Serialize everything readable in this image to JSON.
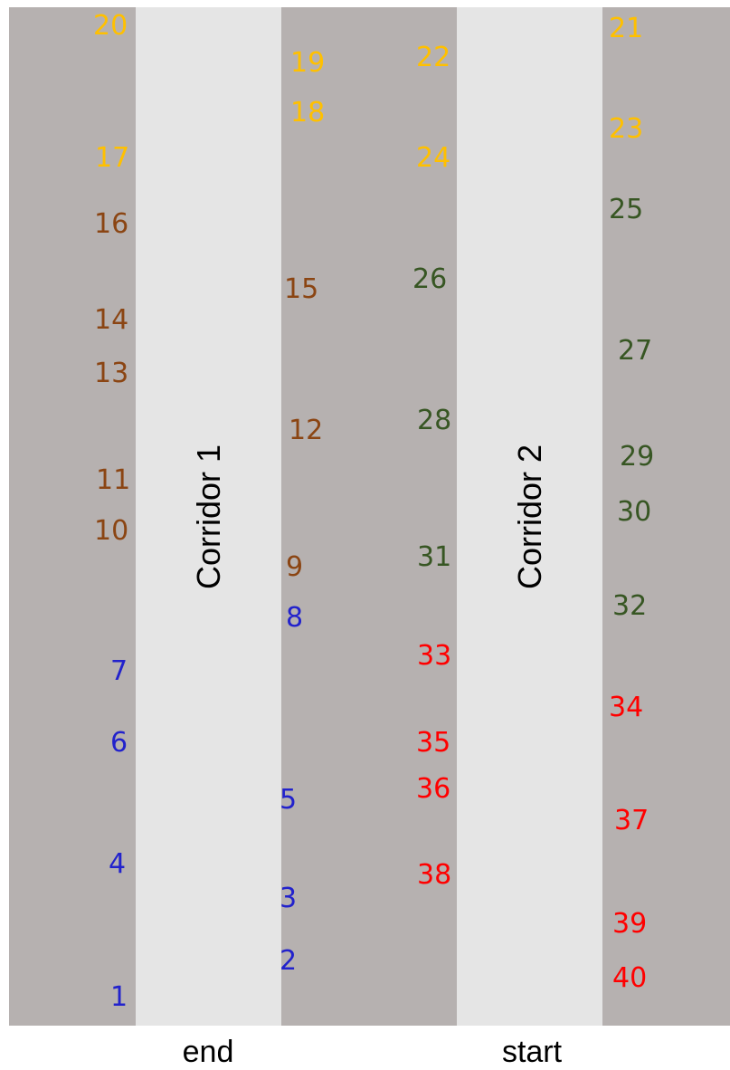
{
  "colors": {
    "shelf": "#b6b1b0",
    "corridor": "#e5e5e5",
    "yellow": "#ffc000",
    "brown": "#8b4513",
    "green": "#375623",
    "blue": "#2222cc",
    "red": "#ff0000"
  },
  "corridors": [
    {
      "label": "Corridor 1"
    },
    {
      "label": "Corridor 2"
    }
  ],
  "bottom_labels": {
    "end": "end",
    "start": "start"
  },
  "locations": [
    {
      "n": "1",
      "color": "blue"
    },
    {
      "n": "2",
      "color": "blue"
    },
    {
      "n": "3",
      "color": "blue"
    },
    {
      "n": "4",
      "color": "blue"
    },
    {
      "n": "5",
      "color": "blue"
    },
    {
      "n": "6",
      "color": "blue"
    },
    {
      "n": "7",
      "color": "blue"
    },
    {
      "n": "8",
      "color": "blue"
    },
    {
      "n": "9",
      "color": "brown"
    },
    {
      "n": "10",
      "color": "brown"
    },
    {
      "n": "11",
      "color": "brown"
    },
    {
      "n": "12",
      "color": "brown"
    },
    {
      "n": "13",
      "color": "brown"
    },
    {
      "n": "14",
      "color": "brown"
    },
    {
      "n": "15",
      "color": "brown"
    },
    {
      "n": "16",
      "color": "brown"
    },
    {
      "n": "17",
      "color": "yellow"
    },
    {
      "n": "18",
      "color": "yellow"
    },
    {
      "n": "19",
      "color": "yellow"
    },
    {
      "n": "20",
      "color": "yellow"
    },
    {
      "n": "21",
      "color": "yellow"
    },
    {
      "n": "22",
      "color": "yellow"
    },
    {
      "n": "23",
      "color": "yellow"
    },
    {
      "n": "24",
      "color": "yellow"
    },
    {
      "n": "25",
      "color": "green"
    },
    {
      "n": "26",
      "color": "green"
    },
    {
      "n": "27",
      "color": "green"
    },
    {
      "n": "28",
      "color": "green"
    },
    {
      "n": "29",
      "color": "green"
    },
    {
      "n": "30",
      "color": "green"
    },
    {
      "n": "31",
      "color": "green"
    },
    {
      "n": "32",
      "color": "green"
    },
    {
      "n": "33",
      "color": "red"
    },
    {
      "n": "34",
      "color": "red"
    },
    {
      "n": "35",
      "color": "red"
    },
    {
      "n": "36",
      "color": "red"
    },
    {
      "n": "37",
      "color": "red"
    },
    {
      "n": "38",
      "color": "red"
    },
    {
      "n": "39",
      "color": "red"
    },
    {
      "n": "40",
      "color": "red"
    }
  ]
}
